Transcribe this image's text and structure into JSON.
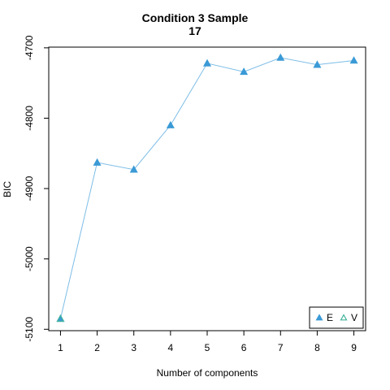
{
  "chart_data": {
    "type": "line",
    "title": "Condition 3 Sample\n17",
    "x_label": "Number of components",
    "y_label": "BIC",
    "x": [
      1,
      2,
      3,
      4,
      5,
      6,
      7,
      8,
      9
    ],
    "series": [
      {
        "name": "E",
        "color": "#3b9ad6",
        "line_color": "#7dbde6",
        "marker": "filled-triangle",
        "values": [
          -5085,
          -4863,
          -4873,
          -4810,
          -4722,
          -4734,
          -4714,
          -4724,
          -4718
        ]
      },
      {
        "name": "V",
        "color": "#45b39d",
        "marker": "open-triangle",
        "values": [
          -5085,
          null,
          null,
          null,
          null,
          null,
          null,
          null,
          null
        ]
      }
    ],
    "xlim": [
      0.68,
      9.32
    ],
    "xticks": [
      1,
      2,
      3,
      4,
      5,
      6,
      7,
      8,
      9
    ],
    "ylim": [
      -5102,
      -4699
    ],
    "yticks": [
      -4700,
      -4800,
      -4900,
      -5000,
      -5100
    ],
    "legend": "bottomright",
    "grid": false
  }
}
